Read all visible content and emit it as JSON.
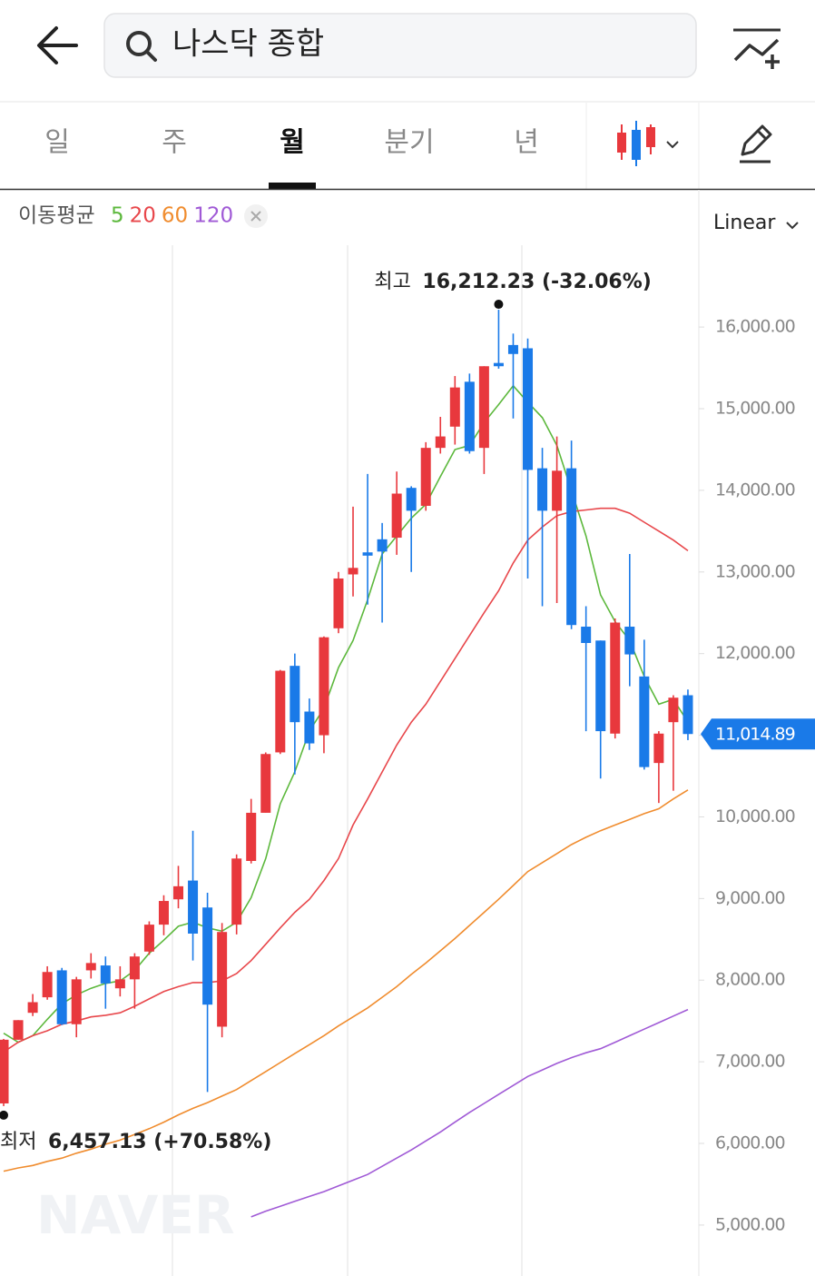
{
  "header": {
    "search_text": "나스닥 종합"
  },
  "tabs": {
    "labels": [
      "일",
      "주",
      "월",
      "분기",
      "년"
    ],
    "active": 2
  },
  "indicator_label": "이동평균",
  "scale_label": "Linear",
  "watermark": "NAVER",
  "chart_data": {
    "type": "candlestick",
    "up_color": "#e8383d",
    "down_color": "#1a7ae8",
    "ylim": [
      4376,
      17670
    ],
    "yticks": [
      {
        "value": 16000,
        "label": "16,000.00"
      },
      {
        "value": 15000,
        "label": "15,000.00"
      },
      {
        "value": 14000,
        "label": "14,000.00"
      },
      {
        "value": 13000,
        "label": "13,000.00"
      },
      {
        "value": 12000,
        "label": "12,000.00"
      },
      {
        "value": 11000,
        "label": "11,000.00"
      },
      {
        "value": 10000,
        "label": "10,000.00"
      },
      {
        "value": 9000,
        "label": "9,000.00"
      },
      {
        "value": 8000,
        "label": "8,000.00"
      },
      {
        "value": 7000,
        "label": "7,000.00"
      },
      {
        "value": 6000,
        "label": "6,000.00"
      },
      {
        "value": 5000,
        "label": "5,000.00"
      }
    ],
    "candles": {
      "open": [
        6490,
        7270,
        7600,
        7790,
        8120,
        7460,
        8120,
        8180,
        7900,
        8010,
        8350,
        8680,
        8990,
        9220,
        8890,
        7430,
        8680,
        9460,
        10050,
        10790,
        11850,
        11290,
        11000,
        12310,
        12970,
        13240,
        13400,
        13420,
        14030,
        13810,
        14520,
        14780,
        15330,
        14520,
        15560,
        15780,
        15740,
        14270,
        13750,
        14270,
        12330,
        12160,
        11020,
        12330,
        11720,
        10660,
        11160,
        11490
      ],
      "high": [
        7280,
        7510,
        7830,
        8170,
        8150,
        8040,
        8330,
        8290,
        8170,
        8330,
        8720,
        9040,
        9400,
        9830,
        9070,
        8700,
        9540,
        10220,
        10790,
        11800,
        12000,
        11450,
        12210,
        13000,
        13800,
        14200,
        13600,
        14230,
        14050,
        14590,
        14900,
        15400,
        15430,
        15520,
        16212.23,
        15920,
        15860,
        14520,
        14660,
        14610,
        12580,
        12160,
        12430,
        13220,
        12170,
        11050,
        11490,
        11560
      ],
      "low": [
        6457.13,
        7270,
        7560,
        7760,
        7450,
        7300,
        8020,
        7650,
        7800,
        7650,
        8310,
        8550,
        8880,
        8240,
        6630,
        7300,
        8560,
        9430,
        10050,
        10770,
        10520,
        10820,
        10780,
        12250,
        12700,
        12600,
        12380,
        13210,
        13000,
        13750,
        14450,
        14560,
        14450,
        14200,
        15490,
        14880,
        12920,
        12580,
        12620,
        12300,
        11050,
        10470,
        10960,
        11600,
        10580,
        10170,
        10320,
        10940
      ],
      "close": [
        7270,
        7510,
        7730,
        8100,
        7460,
        8010,
        8210,
        7960,
        8010,
        8290,
        8680,
        8970,
        9150,
        8570,
        7700,
        8590,
        9490,
        10050,
        10770,
        11790,
        11160,
        10900,
        12200,
        12920,
        13050,
        13200,
        13250,
        13960,
        13750,
        14520,
        14660,
        15260,
        14480,
        15520,
        15520,
        15670,
        14250,
        13750,
        14240,
        12350,
        12130,
        11050,
        12380,
        11990,
        10610,
        11020,
        11460,
        11014.89
      ]
    },
    "series": [
      {
        "name": "5",
        "color": "#5cb83c",
        "values": [
          7350,
          7240,
          7320,
          7520,
          7710,
          7820,
          7900,
          7960,
          7990,
          8120,
          8330,
          8490,
          8660,
          8710,
          8640,
          8600,
          8710,
          9010,
          9490,
          10160,
          10550,
          11050,
          11330,
          11830,
          12160,
          12660,
          13220,
          13440,
          13660,
          13830,
          14170,
          14500,
          14550,
          14830,
          15050,
          15280,
          15080,
          14890,
          14550,
          14000,
          13440,
          12720,
          12390,
          12160,
          11720,
          11380,
          11440,
          11160
        ]
      },
      {
        "name": "20",
        "color": "#e8474b",
        "values": [
          7120,
          7240,
          7320,
          7380,
          7460,
          7500,
          7550,
          7570,
          7600,
          7680,
          7770,
          7860,
          7920,
          7970,
          7970,
          7990,
          8080,
          8240,
          8440,
          8640,
          8830,
          8990,
          9220,
          9490,
          9900,
          10220,
          10550,
          10880,
          11160,
          11380,
          11660,
          11940,
          12220,
          12500,
          12770,
          13110,
          13390,
          13550,
          13690,
          13740,
          13760,
          13780,
          13780,
          13720,
          13610,
          13500,
          13390,
          13260
        ]
      },
      {
        "name": "60",
        "color": "#f08c2e",
        "values": [
          5660,
          5700,
          5730,
          5780,
          5820,
          5880,
          5930,
          5990,
          6040,
          6110,
          6180,
          6260,
          6350,
          6430,
          6500,
          6580,
          6660,
          6770,
          6880,
          6990,
          7100,
          7210,
          7320,
          7440,
          7550,
          7660,
          7790,
          7920,
          8070,
          8210,
          8360,
          8510,
          8670,
          8830,
          8990,
          9160,
          9330,
          9440,
          9550,
          9660,
          9750,
          9830,
          9900,
          9970,
          10040,
          10100,
          10220,
          10330
        ]
      },
      {
        "name": "120",
        "color": "#a05ad6",
        "values": [
          null,
          null,
          null,
          null,
          null,
          null,
          null,
          null,
          null,
          null,
          null,
          null,
          null,
          null,
          null,
          null,
          null,
          5100,
          5170,
          5230,
          5290,
          5350,
          5410,
          5480,
          5550,
          5620,
          5720,
          5820,
          5920,
          6030,
          6140,
          6260,
          6380,
          6490,
          6600,
          6710,
          6820,
          6900,
          6980,
          7050,
          7110,
          7160,
          7240,
          7320,
          7400,
          7480,
          7560,
          7640
        ]
      }
    ],
    "annotations": {
      "high": {
        "label": "최고",
        "text": "16,212.23 (-32.06%)",
        "index": 34
      },
      "low": {
        "label": "최저",
        "text": "6,457.13 (+70.58%)",
        "index": 0
      }
    },
    "last_price": {
      "value": 11014.89,
      "label": "11,014.89"
    }
  }
}
